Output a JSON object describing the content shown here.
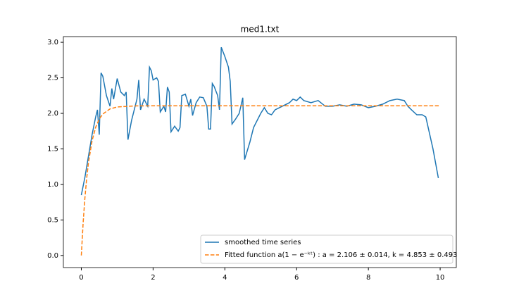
{
  "chart_data": {
    "type": "line",
    "title": "med1.txt",
    "xlim": [
      -0.5,
      10.45
    ],
    "ylim": [
      -0.17,
      3.08
    ],
    "xticks": [
      0,
      2,
      4,
      6,
      8,
      10
    ],
    "yticks": [
      {
        "value": 0,
        "label": "0.0"
      },
      {
        "value": 0.5,
        "label": "0.5"
      },
      {
        "value": 1,
        "label": "1.0"
      },
      {
        "value": 1.5,
        "label": "1.5"
      },
      {
        "value": 2,
        "label": "2.0"
      },
      {
        "value": 2.5,
        "label": "2.5"
      },
      {
        "value": 3,
        "label": "3.0"
      }
    ],
    "grid": false,
    "legend": "lower right",
    "series": [
      {
        "name": "smoothed time series",
        "color": "#1f77b4",
        "dash": false,
        "x": [
          0,
          0.1,
          0.2,
          0.3,
          0.4,
          0.45,
          0.5,
          0.55,
          0.6,
          0.7,
          0.8,
          0.85,
          0.9,
          1.0,
          1.1,
          1.2,
          1.25,
          1.3,
          1.4,
          1.5,
          1.55,
          1.6,
          1.65,
          1.75,
          1.85,
          1.9,
          1.95,
          2.0,
          2.1,
          2.15,
          2.2,
          2.3,
          2.35,
          2.4,
          2.45,
          2.5,
          2.6,
          2.7,
          2.75,
          2.8,
          2.9,
          3.0,
          3.05,
          3.1,
          3.2,
          3.3,
          3.4,
          3.5,
          3.55,
          3.6,
          3.65,
          3.7,
          3.8,
          3.85,
          3.9,
          4.0,
          4.1,
          4.15,
          4.2,
          4.3,
          4.4,
          4.5,
          4.55,
          4.7,
          4.8,
          5.0,
          5.1,
          5.2,
          5.3,
          5.4,
          5.6,
          5.8,
          5.9,
          6.0,
          6.1,
          6.2,
          6.4,
          6.6,
          6.8,
          7.0,
          7.2,
          7.4,
          7.6,
          7.8,
          8.0,
          8.2,
          8.4,
          8.6,
          8.8,
          9.0,
          9.1,
          9.2,
          9.35,
          9.5,
          9.6,
          9.8,
          9.95
        ],
        "values": [
          0.85,
          1.1,
          1.4,
          1.7,
          1.95,
          2.05,
          1.7,
          2.57,
          2.52,
          2.25,
          2.1,
          2.35,
          2.2,
          2.49,
          2.3,
          2.25,
          2.3,
          1.63,
          1.9,
          2.1,
          2.2,
          2.47,
          2.05,
          2.2,
          2.1,
          2.65,
          2.6,
          2.47,
          2.5,
          2.45,
          2.02,
          2.1,
          2.02,
          2.37,
          2.3,
          1.74,
          1.82,
          1.75,
          1.8,
          2.25,
          2.27,
          2.1,
          2.2,
          1.97,
          2.15,
          2.23,
          2.22,
          2.1,
          1.78,
          1.78,
          2.42,
          2.38,
          2.25,
          2.05,
          2.93,
          2.8,
          2.65,
          2.45,
          1.85,
          1.92,
          2.0,
          2.22,
          1.35,
          1.6,
          1.8,
          2.0,
          2.08,
          2.0,
          1.98,
          2.05,
          2.1,
          2.15,
          2.2,
          2.18,
          2.23,
          2.18,
          2.15,
          2.18,
          2.1,
          2.1,
          2.12,
          2.1,
          2.13,
          2.12,
          2.08,
          2.1,
          2.13,
          2.18,
          2.2,
          2.18,
          2.1,
          2.05,
          1.98,
          1.98,
          1.95,
          1.5,
          1.09
        ]
      },
      {
        "name": "Fitted function a(1 − e⁻ᵏᵗ) : a = 2.106 ± 0.014, k = 4.853 ± 0.493",
        "color": "#ff7f0e",
        "dash": true,
        "x": [
          0,
          0.05,
          0.1,
          0.15,
          0.2,
          0.3,
          0.4,
          0.5,
          0.6,
          0.8,
          1.0,
          1.5,
          2,
          10
        ],
        "values": [
          0,
          0.454,
          0.81,
          1.089,
          1.308,
          1.615,
          1.804,
          1.92,
          1.991,
          2.063,
          2.09,
          2.105,
          2.106,
          2.106
        ]
      }
    ]
  }
}
